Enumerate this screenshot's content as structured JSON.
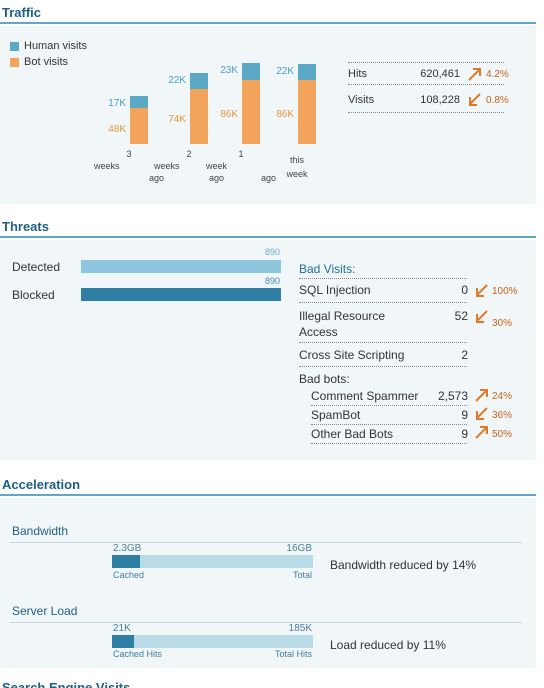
{
  "traffic": {
    "title": "Traffic",
    "legend": {
      "human": "Human visits",
      "bot": "Bot visits"
    },
    "colors": {
      "human": "#5ba9c6",
      "bot": "#f2a45c"
    },
    "chart_data": {
      "type": "bar",
      "categories": [
        "3 weeks ago",
        "2 weeks ago",
        "1 week ago",
        "this week"
      ],
      "series": [
        {
          "name": "Human visits",
          "values": [
            17,
            22,
            23,
            22
          ],
          "labels": [
            "17K",
            "22K",
            "23K",
            "22K"
          ]
        },
        {
          "name": "Bot visits",
          "values": [
            48,
            74,
            86,
            86
          ],
          "labels": [
            "48K",
            "74K",
            "86K",
            "86K"
          ]
        }
      ],
      "stacked": true
    },
    "xlabels": [
      [
        "3",
        "weeks",
        "ago"
      ],
      [
        "2",
        "weeks",
        "ago"
      ],
      [
        "1",
        "week",
        "ago"
      ],
      [
        "this",
        "week"
      ]
    ],
    "stats": [
      {
        "label": "Hits",
        "value": "620,461",
        "change": "4.2%",
        "direction": "up"
      },
      {
        "label": "Visits",
        "value": "108,228",
        "change": "0.8%",
        "direction": "down"
      }
    ]
  },
  "threats": {
    "title": "Threats",
    "detected": {
      "label": "Detected",
      "value": "890",
      "fraction": 1.0
    },
    "blocked": {
      "label": "Blocked",
      "value": "890",
      "fraction": 1.0
    },
    "bad_visits_title": "Bad Visits:",
    "bad_visits": [
      {
        "label": "SQL Injection",
        "value": "0",
        "change": "100%",
        "direction": "down"
      },
      {
        "label": "Illegal Resource Access",
        "line1": "Illegal Resource",
        "line2": "Access",
        "value": "52",
        "change": "30%",
        "direction": "down"
      },
      {
        "label": "Cross Site Scripting",
        "value": "2",
        "change": "",
        "direction": ""
      }
    ],
    "bad_bots_title": "Bad bots:",
    "bad_bots": [
      {
        "label": "Comment Spammer",
        "value": "2,573",
        "change": "24%",
        "direction": "up"
      },
      {
        "label": "SpamBot",
        "value": "9",
        "change": "36%",
        "direction": "down"
      },
      {
        "label": "Other Bad Bots",
        "value": "9",
        "change": "50%",
        "direction": "up"
      }
    ]
  },
  "acceleration": {
    "title": "Acceleration",
    "bandwidth": {
      "label": "Bandwidth",
      "cached_value": "2.3GB",
      "total_value": "16GB",
      "cached_label": "Cached",
      "total_label": "Total",
      "fraction": 0.14,
      "desc": "Bandwidth reduced by 14%"
    },
    "server_load": {
      "label": "Server Load",
      "cached_value": "21K",
      "total_value": "185K",
      "cached_label": "Cached Hits",
      "total_label": "Total Hits",
      "fraction": 0.11,
      "desc": "Load reduced by 11%"
    }
  },
  "next_section_title": "Search Engine Visits"
}
